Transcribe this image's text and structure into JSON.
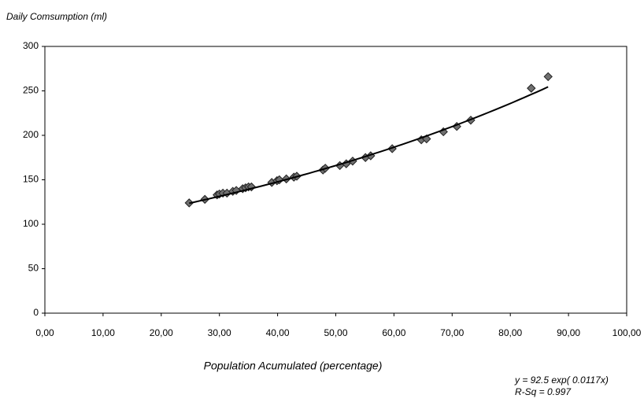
{
  "chart_data": {
    "type": "scatter",
    "y_label": "Daily Comsumption (ml)",
    "x_label": "Population Acumulated (percentage)",
    "x": [
      24.8,
      27.5,
      29.6,
      30.0,
      30.6,
      31.3,
      32.3,
      32.9,
      34.0,
      34.5,
      35.0,
      35.5,
      39.0,
      39.9,
      40.3,
      41.5,
      42.8,
      43.3,
      47.8,
      48.2,
      50.7,
      51.8,
      52.9,
      55.1,
      56.0,
      59.7,
      64.7,
      65.6,
      68.5,
      70.8,
      73.2,
      83.6,
      86.5
    ],
    "values": [
      124,
      128,
      133,
      134,
      135,
      135,
      137,
      138,
      140,
      141,
      142,
      142,
      147,
      149,
      150,
      151,
      153,
      154,
      161,
      163,
      166,
      168,
      171,
      175,
      177,
      185,
      195,
      196,
      204,
      210,
      217,
      253,
      266
    ],
    "color": "#707070",
    "xlim": [
      0,
      100
    ],
    "xticks": [
      {
        "value": 0,
        "label": "0,00"
      },
      {
        "value": 10,
        "label": "10,00"
      },
      {
        "value": 20,
        "label": "20,00"
      },
      {
        "value": 30,
        "label": "30,00"
      },
      {
        "value": 40,
        "label": "40,00"
      },
      {
        "value": 50,
        "label": "50,00"
      },
      {
        "value": 60,
        "label": "60,00"
      },
      {
        "value": 70,
        "label": "70,00"
      },
      {
        "value": 80,
        "label": "80,00"
      },
      {
        "value": 90,
        "label": "90,00"
      },
      {
        "value": 100,
        "label": "100,00"
      }
    ],
    "ylim": [
      0,
      300
    ],
    "yticks": [
      0,
      50,
      100,
      150,
      200,
      250,
      300
    ],
    "trendline": {
      "label": "y = 92.5 exp( 0.0117x)",
      "a": 92.5,
      "b": 0.0117,
      "r_sq_label": "R-Sq = 0.997"
    }
  }
}
